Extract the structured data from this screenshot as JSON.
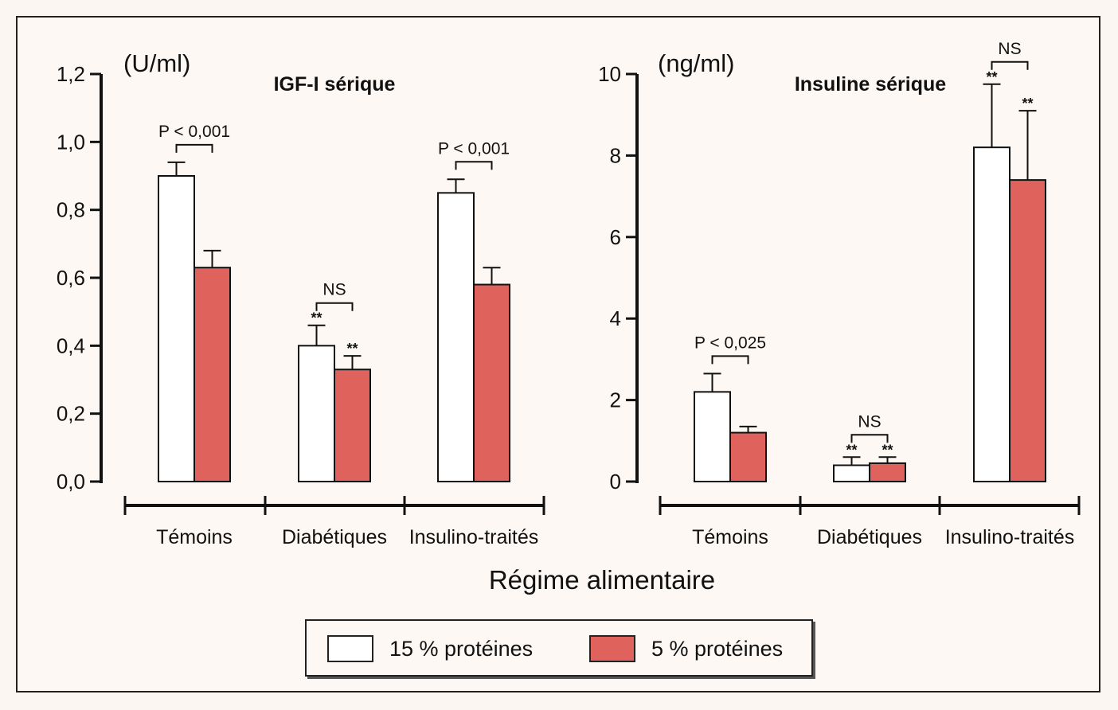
{
  "colors": {
    "series_a": "#ffffff",
    "series_b": "#e0625c",
    "axis": "#111111"
  },
  "x_title": "Régime alimentaire",
  "legend": [
    {
      "label": "15 % protéines",
      "color": "#ffffff"
    },
    {
      "label": "5 % protéines",
      "color": "#e0625c"
    }
  ],
  "chart_data": [
    {
      "type": "bar",
      "title": "IGF-I sérique",
      "ylabel": "(U/ml)",
      "ylim": [
        0,
        1.2
      ],
      "yticks": [
        "0,0",
        "0,2",
        "0,4",
        "0,6",
        "0,8",
        "1,0",
        "1,2"
      ],
      "categories": [
        "Témoins",
        "Diabétiques",
        "Insulino-traités"
      ],
      "series": [
        {
          "name": "15 % protéines",
          "values": [
            0.9,
            0.4,
            0.85
          ],
          "errors": [
            0.04,
            0.06,
            0.04
          ],
          "stars": [
            "",
            "**",
            ""
          ]
        },
        {
          "name": "5 % protéines",
          "values": [
            0.63,
            0.33,
            0.58
          ],
          "errors": [
            0.05,
            0.04,
            0.05
          ],
          "stars": [
            "",
            "**",
            ""
          ]
        }
      ],
      "comparisons": [
        "P < 0,001",
        "NS",
        "P < 0,001"
      ]
    },
    {
      "type": "bar",
      "title": "Insuline sérique",
      "ylabel": "(ng/ml)",
      "ylim": [
        0,
        10
      ],
      "yticks": [
        "0",
        "2",
        "4",
        "6",
        "8",
        "10"
      ],
      "categories": [
        "Témoins",
        "Diabétiques",
        "Insulino-traités"
      ],
      "series": [
        {
          "name": "15 % protéines",
          "values": [
            2.2,
            0.4,
            8.2
          ],
          "errors": [
            0.45,
            0.2,
            1.55
          ],
          "stars": [
            "",
            "**",
            "**"
          ]
        },
        {
          "name": "5 % protéines",
          "values": [
            1.2,
            0.45,
            7.4
          ],
          "errors": [
            0.15,
            0.15,
            1.7
          ],
          "stars": [
            "",
            "**",
            "**"
          ]
        }
      ],
      "comparisons": [
        "P < 0,025",
        "NS",
        "NS"
      ]
    }
  ]
}
